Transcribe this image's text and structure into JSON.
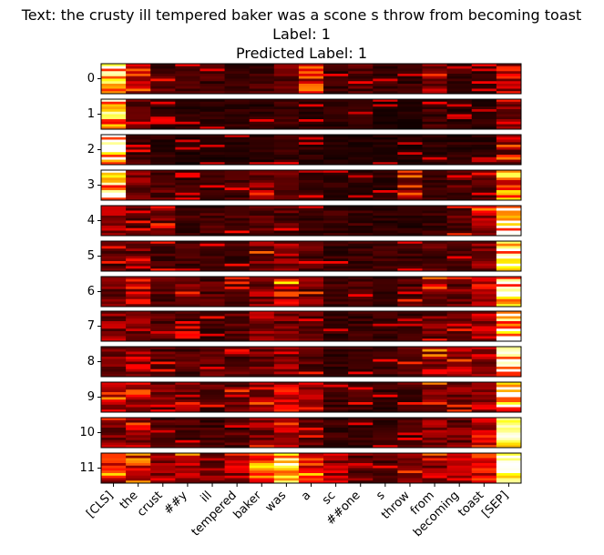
{
  "chart_data": {
    "type": "heatmap",
    "title_lines": [
      "Text: the crusty ill tempered baker was a scone s throw from becoming toast",
      "Label: 1",
      "Predicted Label: 1"
    ],
    "tokens": [
      "[CLS]",
      "the",
      "crust",
      "##y",
      "ill",
      "tempered",
      "baker",
      "was",
      "a",
      "sc",
      "##one",
      "s",
      "throw",
      "from",
      "becoming",
      "toast",
      "[SEP]"
    ],
    "layers": [
      "0",
      "1",
      "2",
      "3",
      "4",
      "5",
      "6",
      "7",
      "8",
      "9",
      "10",
      "11"
    ],
    "heads_per_layer": 12,
    "colormap": "hot",
    "value_range": [
      0,
      1
    ],
    "layer_token_intensity": [
      [
        0.85,
        0.45,
        0.15,
        0.12,
        0.12,
        0.1,
        0.12,
        0.2,
        0.45,
        0.1,
        0.15,
        0.1,
        0.1,
        0.25,
        0.12,
        0.1,
        0.35
      ],
      [
        0.85,
        0.15,
        0.1,
        0.08,
        0.08,
        0.08,
        0.08,
        0.1,
        0.08,
        0.08,
        0.08,
        0.06,
        0.06,
        0.12,
        0.08,
        0.08,
        0.2
      ],
      [
        0.95,
        0.12,
        0.08,
        0.06,
        0.06,
        0.06,
        0.08,
        0.1,
        0.08,
        0.06,
        0.06,
        0.06,
        0.06,
        0.08,
        0.08,
        0.08,
        0.25
      ],
      [
        0.9,
        0.2,
        0.15,
        0.1,
        0.1,
        0.12,
        0.25,
        0.15,
        0.1,
        0.08,
        0.08,
        0.08,
        0.25,
        0.1,
        0.15,
        0.15,
        0.7
      ],
      [
        0.25,
        0.15,
        0.2,
        0.12,
        0.12,
        0.12,
        0.15,
        0.15,
        0.1,
        0.1,
        0.1,
        0.08,
        0.08,
        0.1,
        0.15,
        0.3,
        0.95
      ],
      [
        0.15,
        0.2,
        0.12,
        0.12,
        0.1,
        0.12,
        0.25,
        0.25,
        0.15,
        0.1,
        0.1,
        0.1,
        0.1,
        0.15,
        0.12,
        0.25,
        0.95
      ],
      [
        0.2,
        0.35,
        0.15,
        0.2,
        0.15,
        0.15,
        0.25,
        0.4,
        0.2,
        0.12,
        0.12,
        0.1,
        0.15,
        0.25,
        0.2,
        0.35,
        0.95
      ],
      [
        0.25,
        0.25,
        0.15,
        0.12,
        0.12,
        0.15,
        0.25,
        0.2,
        0.15,
        0.1,
        0.1,
        0.1,
        0.1,
        0.2,
        0.15,
        0.3,
        0.95
      ],
      [
        0.2,
        0.3,
        0.15,
        0.15,
        0.15,
        0.15,
        0.2,
        0.25,
        0.15,
        0.1,
        0.1,
        0.1,
        0.15,
        0.3,
        0.25,
        0.3,
        0.95
      ],
      [
        0.3,
        0.35,
        0.2,
        0.25,
        0.15,
        0.2,
        0.25,
        0.4,
        0.25,
        0.12,
        0.12,
        0.1,
        0.15,
        0.25,
        0.2,
        0.3,
        0.95
      ],
      [
        0.25,
        0.3,
        0.15,
        0.15,
        0.12,
        0.15,
        0.25,
        0.3,
        0.15,
        0.1,
        0.1,
        0.1,
        0.12,
        0.25,
        0.2,
        0.4,
        0.9
      ],
      [
        0.4,
        0.5,
        0.3,
        0.35,
        0.25,
        0.3,
        0.6,
        0.8,
        0.45,
        0.3,
        0.2,
        0.15,
        0.2,
        0.3,
        0.35,
        0.4,
        0.85
      ]
    ]
  }
}
